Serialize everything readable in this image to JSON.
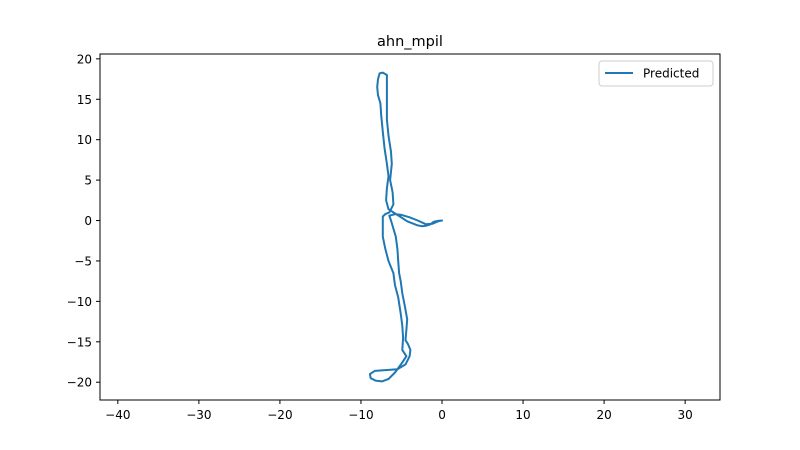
{
  "chart_data": {
    "type": "line",
    "title": "ahn_mpil",
    "xlabel": "",
    "ylabel": "",
    "xlim": [
      -42.2,
      34.3
    ],
    "ylim": [
      -22.2,
      20.6
    ],
    "xticks": [
      -40,
      -30,
      -20,
      -10,
      0,
      10,
      20,
      30
    ],
    "yticks": [
      -20,
      -15,
      -10,
      -5,
      0,
      5,
      10,
      15,
      20
    ],
    "xtick_labels": [
      "−40",
      "−30",
      "−20",
      "−10",
      "0",
      "10",
      "20",
      "30"
    ],
    "ytick_labels": [
      "−20",
      "−15",
      "−10",
      "−5",
      "0",
      "5",
      "10",
      "15",
      "20"
    ],
    "grid": false,
    "legend_position": "top-right",
    "series": [
      {
        "name": "Predicted",
        "color": "#1f77b4",
        "points": [
          [
            0.0,
            0.0
          ],
          [
            -0.5,
            -0.05
          ],
          [
            -1.0,
            -0.15
          ],
          [
            -1.5,
            -0.5
          ],
          [
            -2.0,
            -0.65
          ],
          [
            -2.5,
            -0.7
          ],
          [
            -3.0,
            -0.6
          ],
          [
            -3.5,
            -0.4
          ],
          [
            -4.3,
            -0.1
          ],
          [
            -5.2,
            0.5
          ],
          [
            -6.0,
            1.0
          ],
          [
            -6.6,
            1.4
          ],
          [
            -6.9,
            2.5
          ],
          [
            -6.8,
            4.0
          ],
          [
            -6.6,
            5.5
          ],
          [
            -6.8,
            7.0
          ],
          [
            -7.1,
            9.0
          ],
          [
            -7.3,
            11.0
          ],
          [
            -7.5,
            13.0
          ],
          [
            -7.6,
            14.5
          ],
          [
            -7.9,
            15.5
          ],
          [
            -8.0,
            16.5
          ],
          [
            -7.9,
            17.5
          ],
          [
            -7.7,
            18.2
          ],
          [
            -7.3,
            18.3
          ],
          [
            -6.8,
            18.0
          ],
          [
            -6.8,
            17.0
          ],
          [
            -6.8,
            15.0
          ],
          [
            -6.8,
            12.5
          ],
          [
            -6.6,
            10.5
          ],
          [
            -6.3,
            8.5
          ],
          [
            -6.2,
            7.0
          ],
          [
            -6.4,
            5.0
          ],
          [
            -6.1,
            3.5
          ],
          [
            -6.0,
            2.0
          ],
          [
            -6.5,
            1.0
          ],
          [
            -7.0,
            0.8
          ],
          [
            -7.3,
            0.5
          ],
          [
            -7.3,
            -0.5
          ],
          [
            -7.3,
            -2.0
          ],
          [
            -7.0,
            -3.5
          ],
          [
            -6.6,
            -5.0
          ],
          [
            -6.0,
            -6.5
          ],
          [
            -5.8,
            -8.0
          ],
          [
            -5.4,
            -9.5
          ],
          [
            -5.1,
            -11.5
          ],
          [
            -4.9,
            -13.0
          ],
          [
            -4.8,
            -14.5
          ],
          [
            -4.9,
            -16.0
          ],
          [
            -4.4,
            -16.8
          ],
          [
            -5.0,
            -17.7
          ],
          [
            -5.8,
            -18.8
          ],
          [
            -6.6,
            -19.6
          ],
          [
            -7.4,
            -19.9
          ],
          [
            -8.2,
            -19.8
          ],
          [
            -8.8,
            -19.5
          ],
          [
            -8.9,
            -19.0
          ],
          [
            -8.3,
            -18.6
          ],
          [
            -7.0,
            -18.5
          ],
          [
            -5.5,
            -18.4
          ],
          [
            -4.5,
            -17.8
          ],
          [
            -4.0,
            -16.8
          ],
          [
            -3.9,
            -16.0
          ],
          [
            -4.2,
            -15.3
          ],
          [
            -4.5,
            -14.8
          ],
          [
            -4.4,
            -13.5
          ],
          [
            -4.3,
            -12.2
          ],
          [
            -4.6,
            -10.5
          ],
          [
            -4.9,
            -9.0
          ],
          [
            -5.1,
            -7.5
          ],
          [
            -5.3,
            -6.5
          ],
          [
            -5.4,
            -5.0
          ],
          [
            -5.5,
            -3.5
          ],
          [
            -5.7,
            -2.0
          ],
          [
            -6.0,
            -1.0
          ],
          [
            -6.3,
            0.0
          ],
          [
            -6.5,
            0.6
          ],
          [
            -5.8,
            0.8
          ],
          [
            -5.0,
            0.7
          ],
          [
            -4.0,
            0.4
          ],
          [
            -3.0,
            0.0
          ],
          [
            -2.0,
            -0.45
          ],
          [
            -1.2,
            -0.4
          ],
          [
            -0.5,
            -0.1
          ],
          [
            0.0,
            0.0
          ]
        ]
      }
    ]
  }
}
